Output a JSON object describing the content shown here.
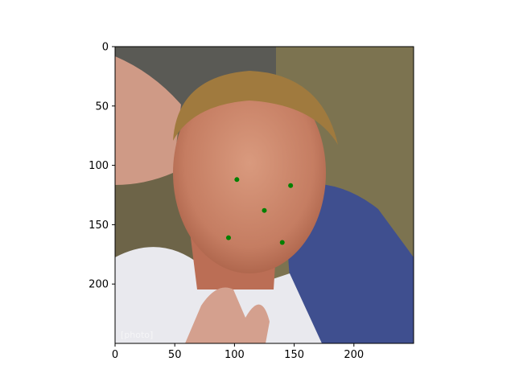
{
  "chart_data": {
    "type": "scatter",
    "image": {
      "kind": "photograph",
      "subject": "face-portrait",
      "width": 250,
      "height": 250
    },
    "x": [
      102,
      147,
      125,
      95,
      140
    ],
    "y": [
      112,
      117,
      138,
      161,
      165
    ],
    "xlim": [
      0,
      250
    ],
    "ylim": [
      250,
      0
    ],
    "xticks": [
      0,
      50,
      100,
      150,
      200
    ],
    "yticks": [
      0,
      50,
      100,
      150,
      200
    ],
    "marker_color": "#008000",
    "grid": false
  }
}
